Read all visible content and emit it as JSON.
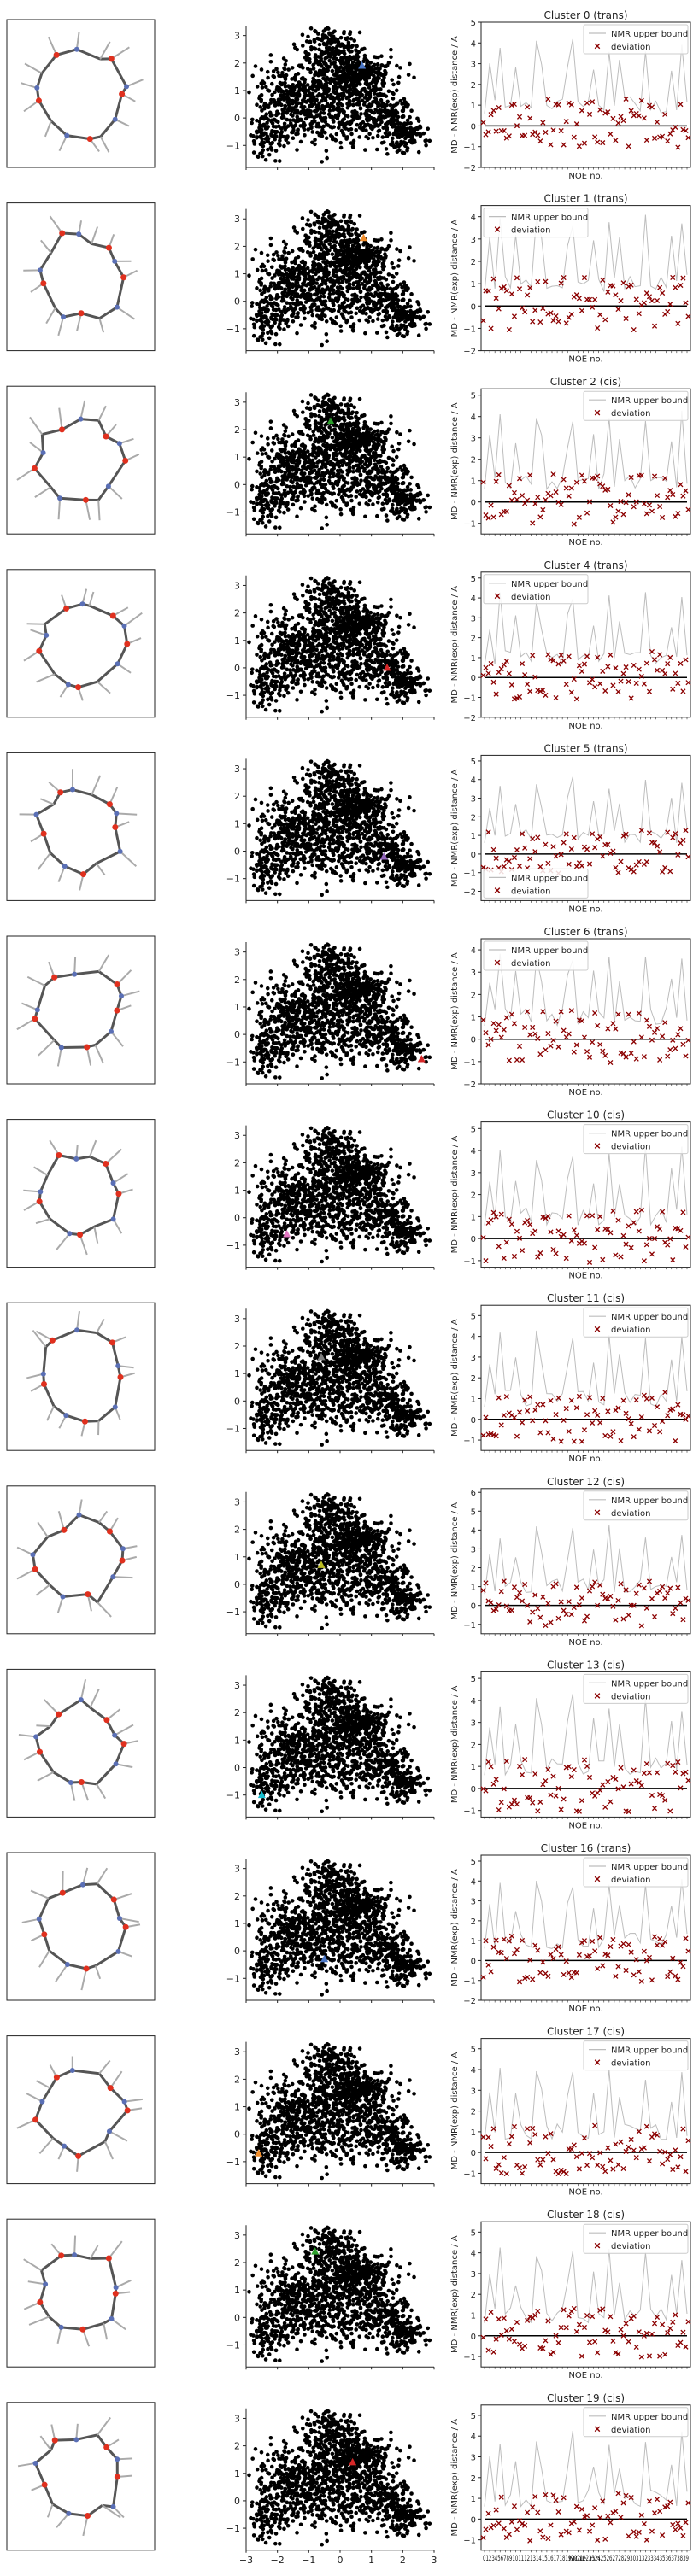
{
  "figure_type": "grid of cluster panels: molecular structure, 2D embedding scatter with cluster marker, per-NOE deviation plot",
  "chart_data": [
    {
      "type": "scatter",
      "panel": "embedding",
      "xlim": [
        -3,
        3
      ],
      "ylim": [
        -1.8,
        3.3
      ],
      "xticks": [
        "−3",
        "−2",
        "−1",
        "0",
        "1",
        "2",
        "3"
      ],
      "yticks": [
        "−1",
        "0",
        "1",
        "2",
        "3"
      ],
      "point_color": "#000000",
      "grid": false
    },
    {
      "type": "scatter",
      "panel": "noe_deviation",
      "xlabel": "NOE no.",
      "ylabel": "MD - NMR(exp) distance / A",
      "x_tick_labels_last_row": "0123456789101112131415161718192021222324252627282930313233343536373839",
      "legend": [
        "NMR upper bound",
        "deviation"
      ],
      "series_colors": {
        "upper_bound": "#bdbdbd",
        "deviation": "#8b0000",
        "zero_line": "#000000"
      }
    }
  ],
  "clusters": [
    {
      "title": "Cluster 0 (trans)",
      "marker": {
        "x": 0.7,
        "y": 1.9,
        "color": "#4c78c8"
      },
      "ylim": [
        -2,
        5
      ],
      "yticks": [
        "−2",
        "−1",
        "0",
        "1",
        "2",
        "3",
        "4",
        "5"
      ],
      "legend": "top-right"
    },
    {
      "title": "Cluster 1 (trans)",
      "marker": {
        "x": 0.75,
        "y": 2.3,
        "color": "#f28e2b"
      },
      "ylim": [
        -2,
        4.5
      ],
      "yticks": [
        "−2",
        "−1",
        "0",
        "1",
        "2",
        "3",
        "4"
      ],
      "legend": "top-left"
    },
    {
      "title": "Cluster 2 (cis)",
      "marker": {
        "x": -0.3,
        "y": 2.3,
        "color": "#2ca02c"
      },
      "ylim": [
        -1.5,
        5.3
      ],
      "yticks": [
        "−1",
        "0",
        "1",
        "2",
        "3",
        "4",
        "5"
      ],
      "legend": "top-right"
    },
    {
      "title": "Cluster 4 (trans)",
      "marker": {
        "x": 1.5,
        "y": 0.0,
        "color": "#d62728"
      },
      "ylim": [
        -2,
        5.3
      ],
      "yticks": [
        "−2",
        "−1",
        "0",
        "1",
        "2",
        "3",
        "4",
        "5"
      ],
      "legend": "top-left"
    },
    {
      "title": "Cluster 5 (trans)",
      "marker": {
        "x": 1.4,
        "y": -0.2,
        "color": "#9467bd"
      },
      "ylim": [
        -2.5,
        5.3
      ],
      "yticks": [
        "−2",
        "−1",
        "0",
        "1",
        "2",
        "3",
        "4",
        "5"
      ],
      "legend": "bottom-left"
    },
    {
      "title": "Cluster 6 (trans)",
      "marker": {
        "x": 2.6,
        "y": -0.9,
        "color": "#d62728"
      },
      "ylim": [
        -2,
        4.5
      ],
      "yticks": [
        "−2",
        "−1",
        "0",
        "1",
        "2",
        "3",
        "4"
      ],
      "legend": "top-left"
    },
    {
      "title": "Cluster 10 (cis)",
      "marker": {
        "x": -1.7,
        "y": -0.6,
        "color": "#e377c2"
      },
      "ylim": [
        -1.3,
        5.3
      ],
      "yticks": [
        "−1",
        "0",
        "1",
        "2",
        "3",
        "4",
        "5"
      ],
      "legend": "top-right"
    },
    {
      "title": "Cluster 11 (cis)",
      "marker": {
        "x": -0.6,
        "y": 1.6,
        "color": "#7f7f7f"
      },
      "ylim": [
        -1.5,
        5.5
      ],
      "yticks": [
        "−1",
        "0",
        "1",
        "2",
        "3",
        "4",
        "5"
      ],
      "legend": "top-right"
    },
    {
      "title": "Cluster 12 (cis)",
      "marker": {
        "x": -0.6,
        "y": 0.7,
        "color": "#bcbd22"
      },
      "ylim": [
        -1.5,
        6.2
      ],
      "yticks": [
        "−1",
        "0",
        "1",
        "2",
        "3",
        "4",
        "5",
        "6"
      ],
      "legend": "top-right"
    },
    {
      "title": "Cluster 13 (cis)",
      "marker": {
        "x": -2.5,
        "y": -1.0,
        "color": "#17becf"
      },
      "ylim": [
        -1.3,
        5.3
      ],
      "yticks": [
        "−1",
        "0",
        "1",
        "2",
        "3",
        "4",
        "5"
      ],
      "legend": "top-right"
    },
    {
      "title": "Cluster 16 (trans)",
      "marker": {
        "x": -0.5,
        "y": -0.3,
        "color": "#4c78c8"
      },
      "ylim": [
        -2,
        5.3
      ],
      "yticks": [
        "−2",
        "−1",
        "0",
        "1",
        "2",
        "3",
        "4",
        "5"
      ],
      "legend": "top-right"
    },
    {
      "title": "Cluster 17 (cis)",
      "marker": {
        "x": -2.6,
        "y": -0.7,
        "color": "#f28e2b"
      },
      "ylim": [
        -1.5,
        5.5
      ],
      "yticks": [
        "−1",
        "0",
        "1",
        "2",
        "3",
        "4",
        "5"
      ],
      "legend": "top-right"
    },
    {
      "title": "Cluster 18 (cis)",
      "marker": {
        "x": -0.8,
        "y": 2.4,
        "color": "#2ca02c"
      },
      "ylim": [
        -1.5,
        5.5
      ],
      "yticks": [
        "−1",
        "0",
        "1",
        "2",
        "3",
        "4",
        "5"
      ],
      "legend": "top-right"
    },
    {
      "title": "Cluster 19 (cis)",
      "marker": {
        "x": 0.4,
        "y": 1.4,
        "color": "#d62728"
      },
      "ylim": [
        -1.5,
        5.5
      ],
      "yticks": [
        "−1",
        "0",
        "1",
        "2",
        "3",
        "4",
        "5"
      ],
      "legend": "top-right"
    }
  ]
}
